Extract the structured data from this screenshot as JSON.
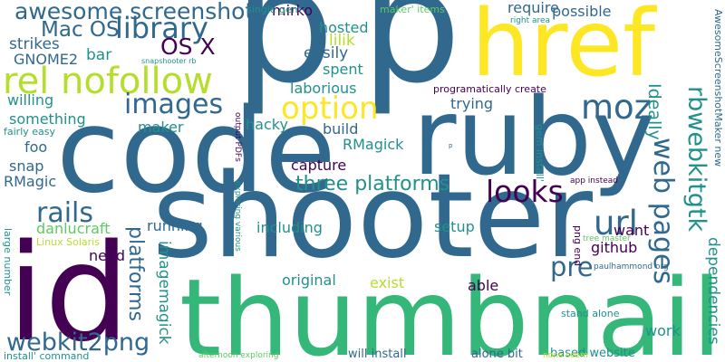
{
  "palette": {
    "background": "#ffffff",
    "deep_purple": "#440154",
    "indigo": "#3b528b",
    "steel_blue": "#31688e",
    "teal": "#21918c",
    "sea_green": "#1f9e89",
    "green": "#35b779",
    "bright_green": "#3fbc73",
    "lime": "#5ec962",
    "yellow_green": "#b5de2b",
    "yellow": "#fde725"
  },
  "words": [
    {
      "text": "shooter",
      "color": "#31688e"
    },
    {
      "text": "thumbnail",
      "color": "#35b779"
    },
    {
      "text": "code",
      "color": "#31688e"
    },
    {
      "text": "ruby",
      "color": "#31688e"
    },
    {
      "text": "p",
      "color": "#31688e"
    },
    {
      "text": "p",
      "color": "#31688e"
    },
    {
      "text": "id",
      "color": "#440154"
    },
    {
      "text": "href",
      "color": "#fde725"
    },
    {
      "text": "rel nofollow",
      "color": "#b5de2b"
    },
    {
      "text": "images",
      "color": "#31688e"
    },
    {
      "text": "option",
      "color": "#fde725"
    },
    {
      "text": "library",
      "color": "#31688e"
    },
    {
      "text": "awesome screenshot",
      "color": "#31688e"
    },
    {
      "text": "Mac OS",
      "color": "#31688e"
    },
    {
      "text": "OS X",
      "color": "#440154"
    },
    {
      "text": "moz",
      "color": "#31688e"
    },
    {
      "text": "looks",
      "color": "#440154"
    },
    {
      "text": "url",
      "color": "#31688e"
    },
    {
      "text": "pre",
      "color": "#31688e"
    },
    {
      "text": "rails",
      "color": "#31688e"
    },
    {
      "text": "three platforms",
      "color": "#21918c"
    },
    {
      "text": "web pages",
      "color": "#31688e"
    },
    {
      "text": "webkit2png",
      "color": "#31688e"
    },
    {
      "text": "rbwebkitgtk",
      "color": "#21918c"
    },
    {
      "text": "platforms",
      "color": "#31688e"
    },
    {
      "text": "imagemagick",
      "color": "#21918c"
    },
    {
      "text": "Ideally",
      "color": "#21918c"
    },
    {
      "text": "dependencies",
      "color": "#21918c"
    },
    {
      "text": "strikes",
      "color": "#31688e"
    },
    {
      "text": "GNOME2",
      "color": "#31688e"
    },
    {
      "text": "bar",
      "color": "#21918c"
    },
    {
      "text": "lilik",
      "color": "#b5de2b"
    },
    {
      "text": "easily",
      "color": "#31688e"
    },
    {
      "text": "spent",
      "color": "#21918c"
    },
    {
      "text": "laborious",
      "color": "#21918c"
    },
    {
      "text": "require",
      "color": "#31688e"
    },
    {
      "text": "possible",
      "color": "#31688e"
    },
    {
      "text": "hosted",
      "color": "#21918c"
    },
    {
      "text": "mirko",
      "color": "#440154"
    },
    {
      "text": "willing",
      "color": "#21918c"
    },
    {
      "text": "something",
      "color": "#21918c"
    },
    {
      "text": "maker",
      "color": "#21918c"
    },
    {
      "text": "trying",
      "color": "#31688e"
    },
    {
      "text": "hacky",
      "color": "#21918c"
    },
    {
      "text": "build",
      "color": "#31688e"
    },
    {
      "text": "RMagick",
      "color": "#21918c"
    },
    {
      "text": "capture",
      "color": "#440154"
    },
    {
      "text": "fairly easy",
      "color": "#21918c"
    },
    {
      "text": "foo",
      "color": "#31688e"
    },
    {
      "text": "snap",
      "color": "#31688e"
    },
    {
      "text": "RMagic",
      "color": "#31688e"
    },
    {
      "text": "danlucraft",
      "color": "#5ec962"
    },
    {
      "text": "running",
      "color": "#31688e"
    },
    {
      "text": "including",
      "color": "#21918c"
    },
    {
      "text": "setup",
      "color": "#21918c"
    },
    {
      "text": "want",
      "color": "#440154"
    },
    {
      "text": "github",
      "color": "#440154"
    },
    {
      "text": "need",
      "color": "#440154"
    },
    {
      "text": "original",
      "color": "#21918c"
    },
    {
      "text": "exist",
      "color": "#b5de2b"
    },
    {
      "text": "able",
      "color": "#440154"
    },
    {
      "text": "work",
      "color": "#21918c"
    },
    {
      "text": "install' command",
      "color": "#21918c"
    },
    {
      "text": "will install",
      "color": "#31688e"
    },
    {
      "text": "alone bit",
      "color": "#31688e"
    },
    {
      "text": "based website",
      "color": "#21918c"
    },
    {
      "text": "single gem",
      "color": "#21918c"
    },
    {
      "text": "maker' items",
      "color": "#5ec962"
    },
    {
      "text": "right area",
      "color": "#21918c"
    },
    {
      "text": "programatically create",
      "color": "#440154"
    },
    {
      "text": "snapshooter rb",
      "color": "#21918c"
    },
    {
      "text": "gem install'",
      "color": "#21918c"
    },
    {
      "text": "app instead",
      "color": "#440154"
    },
    {
      "text": "tree master",
      "color": "#5ec962"
    },
    {
      "text": "png end",
      "color": "#440154"
    },
    {
      "text": "paulhammond org",
      "color": "#31688e"
    },
    {
      "text": "stand alone",
      "color": "#21918c"
    },
    {
      "text": "Linux Solaris",
      "color": "#b5de2b"
    },
    {
      "text": "large number",
      "color": "#21918c"
    },
    {
      "text": "output PDFs",
      "color": "#440154"
    },
    {
      "text": "exploring various",
      "color": "#21918c"
    },
    {
      "text": "afternoon exploring",
      "color": "#5ec962"
    },
    {
      "text": "none seem",
      "color": "#b5de2b"
    },
    {
      "text": "AwesomeScreenshotMaker new",
      "color": "#31688e"
    },
    {
      "text": "p",
      "color": "#31688e"
    }
  ]
}
